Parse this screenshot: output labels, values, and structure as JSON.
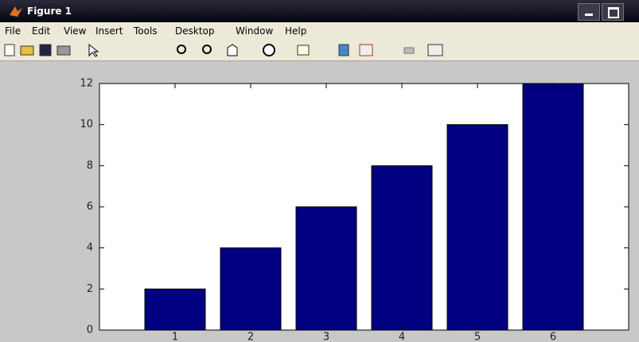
{
  "window": {
    "title": "Figure 1",
    "menus": [
      "File",
      "Edit",
      "View",
      "Insert",
      "Tools",
      "Desktop",
      "Window",
      "Help"
    ]
  },
  "chart_data": {
    "type": "bar",
    "x": [
      1,
      2,
      3,
      4,
      5,
      6
    ],
    "values": [
      2,
      4,
      6,
      8,
      10,
      12
    ],
    "color": "#000080",
    "xlim": [
      0,
      7
    ],
    "xticks": [
      1,
      2,
      3,
      4,
      5,
      6
    ],
    "ylim": [
      0,
      12
    ],
    "yticks": [
      0,
      2,
      4,
      6,
      8,
      10,
      12
    ],
    "grid": false
  }
}
